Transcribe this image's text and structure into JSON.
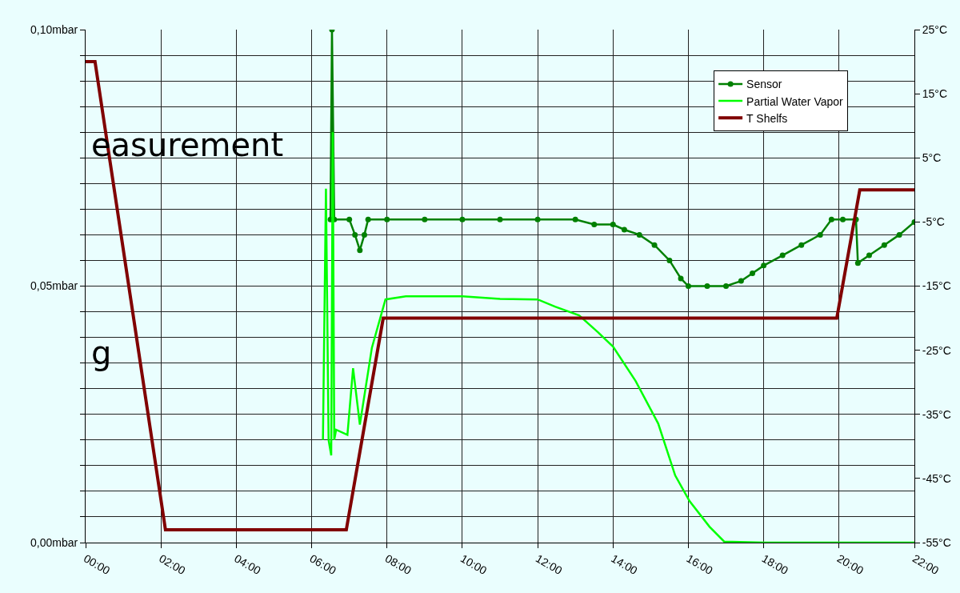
{
  "chart_data": {
    "type": "line",
    "annotations": [
      "easurement",
      "g"
    ],
    "xlim": [
      0,
      22
    ],
    "xticks": [
      {
        "value": 0,
        "label": "00:00"
      },
      {
        "value": 2,
        "label": "02:00"
      },
      {
        "value": 4,
        "label": "04:00"
      },
      {
        "value": 6,
        "label": "06:00"
      },
      {
        "value": 8,
        "label": "08:00"
      },
      {
        "value": 10,
        "label": "10:00"
      },
      {
        "value": 12,
        "label": "12:00"
      },
      {
        "value": 14,
        "label": "14:00"
      },
      {
        "value": 16,
        "label": "16:00"
      },
      {
        "value": 18,
        "label": "18:00"
      },
      {
        "value": 20,
        "label": "20:00"
      },
      {
        "value": 22,
        "label": "22:00"
      }
    ],
    "ylim": [
      0,
      0.1
    ],
    "yticks": [
      {
        "value": 0,
        "label": "0,00mbar"
      },
      {
        "value": 0.005,
        "label": null
      },
      {
        "value": 0.01,
        "label": null
      },
      {
        "value": 0.015,
        "label": null
      },
      {
        "value": 0.02,
        "label": null
      },
      {
        "value": 0.025,
        "label": null
      },
      {
        "value": 0.03,
        "label": null
      },
      {
        "value": 0.035,
        "label": null
      },
      {
        "value": 0.04,
        "label": null
      },
      {
        "value": 0.045,
        "label": null
      },
      {
        "value": 0.05,
        "label": "0,05mbar"
      },
      {
        "value": 0.055,
        "label": null
      },
      {
        "value": 0.06,
        "label": null
      },
      {
        "value": 0.065,
        "label": null
      },
      {
        "value": 0.07,
        "label": null
      },
      {
        "value": 0.075,
        "label": null
      },
      {
        "value": 0.08,
        "label": null
      },
      {
        "value": 0.085,
        "label": null
      },
      {
        "value": 0.09,
        "label": null
      },
      {
        "value": 0.095,
        "label": null
      },
      {
        "value": 0.1,
        "label": "0,10mbar"
      }
    ],
    "y2lim": [
      -55,
      25
    ],
    "y2ticks": [
      {
        "value": 25,
        "label": "25°C"
      },
      {
        "value": 15,
        "label": "15°C"
      },
      {
        "value": 5,
        "label": "5°C"
      },
      {
        "value": -5,
        "label": "-5°C"
      },
      {
        "value": -15,
        "label": "-15°C"
      },
      {
        "value": -25,
        "label": "-25°C"
      },
      {
        "value": -35,
        "label": "-35°C"
      },
      {
        "value": -45,
        "label": "-45°C"
      },
      {
        "value": -55,
        "label": "-55°C"
      }
    ],
    "grid": true,
    "legend": "top right",
    "series": [
      {
        "name": "Sensor",
        "color": "#008000",
        "marker": "circle",
        "x": [
          6.5,
          6.54,
          6.6,
          7.0,
          7.15,
          7.28,
          7.4,
          7.5,
          8.0,
          9.0,
          10.0,
          11.0,
          12.0,
          13.0,
          13.5,
          14.0,
          14.3,
          14.7,
          15.1,
          15.5,
          15.8,
          16.0,
          16.5,
          17.0,
          17.4,
          17.7,
          18.0,
          18.5,
          19.0,
          19.5,
          19.8,
          20.1,
          20.45,
          20.5,
          20.8,
          21.2,
          21.6,
          22.0
        ],
        "values": [
          0.063,
          0.1,
          0.063,
          0.063,
          0.06,
          0.057,
          0.06,
          0.063,
          0.063,
          0.063,
          0.063,
          0.063,
          0.063,
          0.063,
          0.062,
          0.062,
          0.061,
          0.06,
          0.058,
          0.055,
          0.0515,
          0.05,
          0.05,
          0.05,
          0.051,
          0.0525,
          0.054,
          0.056,
          0.058,
          0.06,
          0.063,
          0.063,
          0.063,
          0.0545,
          0.056,
          0.058,
          0.06,
          0.0625
        ]
      },
      {
        "name": "Partial Water Vapor",
        "color": "#00ff00",
        "x": [
          6.3,
          6.38,
          6.45,
          6.52,
          6.56,
          6.6,
          6.65,
          6.95,
          7.1,
          7.28,
          7.6,
          7.96,
          8.5,
          9.0,
          10.0,
          11.0,
          12.0,
          12.46,
          13.1,
          13.6,
          14.0,
          14.6,
          15.2,
          15.65,
          16.03,
          16.56,
          16.95,
          18.0,
          20.0,
          22.0
        ],
        "values": [
          0.02,
          0.069,
          0.02,
          0.017,
          0.08,
          0.02,
          0.022,
          0.021,
          0.034,
          0.023,
          0.038,
          0.0474,
          0.048,
          0.048,
          0.048,
          0.0475,
          0.0474,
          0.046,
          0.0443,
          0.041,
          0.0382,
          0.0315,
          0.0232,
          0.0131,
          0.0081,
          0.0031,
          0.0002,
          0,
          0,
          0
        ]
      },
      {
        "name": "T Shelfs",
        "color": "#800000",
        "axis": "y2",
        "x": [
          0,
          0.25,
          2.12,
          6.92,
          7.9,
          19.94,
          20.55,
          22
        ],
        "values": [
          20,
          20,
          -53,
          -53,
          -20,
          -20,
          0,
          0
        ]
      }
    ]
  }
}
